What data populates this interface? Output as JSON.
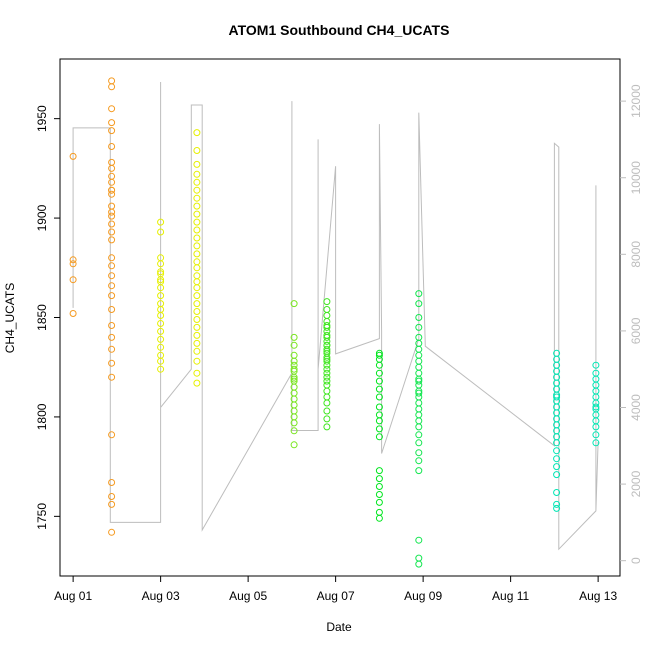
{
  "chart_data": {
    "type": "scatter",
    "title": "ATOM1 Southbound CH4_UCATS",
    "xlabel": "Date",
    "ylabel": "CH4_UCATS",
    "x_ticks": [
      "Aug 01",
      "Aug 03",
      "Aug 05",
      "Aug 07",
      "Aug 09",
      "Aug 11",
      "Aug 13"
    ],
    "x_tick_days": [
      1,
      3,
      5,
      7,
      9,
      11,
      13
    ],
    "xlim_days": [
      0.7,
      13.5
    ],
    "ylim": [
      1720,
      1980
    ],
    "y_ticks": [
      1750,
      1800,
      1850,
      1900,
      1950
    ],
    "y2_ticks": [
      0,
      2000,
      4000,
      6000,
      8000,
      10000,
      12000
    ],
    "y2lim": [
      -400,
      13100
    ],
    "grid": false,
    "colors": {
      "aug01": "#f59a20",
      "aug03": "#e6f000",
      "aug06": "#78e61e",
      "aug07": "#3ee61e",
      "aug08": "#00e61e",
      "aug09": "#14e650",
      "aug12": "#00e6b4",
      "line": "#bdbdbd"
    },
    "series": [
      {
        "color": "aug01",
        "x": [
          1.0,
          1.0,
          1.0,
          1.0,
          1.0,
          1.88,
          1.88,
          1.88,
          1.88,
          1.88,
          1.88,
          1.88,
          1.88,
          1.88,
          1.88,
          1.88,
          1.88,
          1.88,
          1.88,
          1.88,
          1.88,
          1.88,
          1.88,
          1.88,
          1.88,
          1.88,
          1.88,
          1.88,
          1.88,
          1.88,
          1.88,
          1.88,
          1.88,
          1.88,
          1.88,
          1.88,
          1.88,
          1.88,
          1.88,
          1.88
        ],
        "y": [
          1931,
          1879,
          1877,
          1869,
          1852,
          1969,
          1966,
          1955,
          1948,
          1944,
          1936,
          1928,
          1925,
          1921,
          1918,
          1914,
          1906,
          1901,
          1897,
          1893,
          1889,
          1880,
          1876,
          1871,
          1866,
          1861,
          1854,
          1846,
          1840,
          1834,
          1827,
          1820,
          1791,
          1767,
          1760,
          1756,
          1742,
          1912,
          1914,
          1903
        ]
      },
      {
        "color": "aug03",
        "x": [
          3.0,
          3.0,
          3.0,
          3.0,
          3.0,
          3.0,
          3.0,
          3.0,
          3.0,
          3.0,
          3.0,
          3.0,
          3.0,
          3.0,
          3.0,
          3.0,
          3.0,
          3.0,
          3.0,
          3.0,
          3.83,
          3.83,
          3.83,
          3.83,
          3.83,
          3.83,
          3.83,
          3.83,
          3.83,
          3.83,
          3.83,
          3.83,
          3.83,
          3.83,
          3.83,
          3.83,
          3.83,
          3.83,
          3.83,
          3.83,
          3.83,
          3.83,
          3.83,
          3.83,
          3.83,
          3.83,
          3.83,
          3.83,
          3.83,
          3.83
        ],
        "y": [
          1898,
          1893,
          1880,
          1877,
          1873,
          1869,
          1865,
          1861,
          1857,
          1854,
          1851,
          1847,
          1843,
          1839,
          1835,
          1831,
          1828,
          1824,
          1872,
          1868,
          1943,
          1934,
          1927,
          1922,
          1918,
          1914,
          1910,
          1906,
          1902,
          1898,
          1894,
          1890,
          1886,
          1882,
          1878,
          1875,
          1871,
          1868,
          1865,
          1861,
          1857,
          1853,
          1849,
          1845,
          1841,
          1837,
          1833,
          1828,
          1822,
          1817
        ]
      },
      {
        "color": "aug06",
        "x": [
          6.05,
          6.05,
          6.05,
          6.05,
          6.05,
          6.05,
          6.05,
          6.05,
          6.05,
          6.05,
          6.05,
          6.05,
          6.05,
          6.05,
          6.05,
          6.05,
          6.05,
          6.05,
          6.05,
          6.05
        ],
        "y": [
          1857,
          1840,
          1836,
          1831,
          1828,
          1826,
          1823,
          1820,
          1818,
          1815,
          1812,
          1809,
          1806,
          1803,
          1800,
          1797,
          1793,
          1786,
          1824,
          1819
        ]
      },
      {
        "color": "aug07",
        "x": [
          6.8,
          6.8,
          6.8,
          6.8,
          6.8,
          6.8,
          6.8,
          6.8,
          6.8,
          6.8,
          6.8,
          6.8,
          6.8,
          6.8,
          6.8,
          6.8,
          6.8,
          6.8,
          6.8,
          6.8,
          6.8,
          6.8,
          6.8,
          6.8,
          6.8,
          6.8,
          6.8,
          6.8,
          6.8,
          6.8
        ],
        "y": [
          1858,
          1854,
          1851,
          1848,
          1845,
          1843,
          1840,
          1838,
          1836,
          1834,
          1832,
          1830,
          1828,
          1826,
          1824,
          1822,
          1820,
          1818,
          1816,
          1813,
          1810,
          1807,
          1803,
          1799,
          1795,
          1841,
          1836,
          1829,
          1833,
          1846
        ]
      },
      {
        "color": "aug08",
        "x": [
          8.0,
          8.0,
          8.0,
          8.0,
          8.0,
          8.0,
          8.0,
          8.0,
          8.0,
          8.0,
          8.0,
          8.0,
          8.0,
          8.0,
          8.0,
          8.0,
          8.0,
          8.0,
          8.0,
          8.0
        ],
        "y": [
          1832,
          1829,
          1826,
          1822,
          1818,
          1814,
          1810,
          1805,
          1801,
          1798,
          1794,
          1790,
          1773,
          1769,
          1765,
          1761,
          1757,
          1752,
          1749,
          1831
        ]
      },
      {
        "color": "aug09",
        "x": [
          8.9,
          8.9,
          8.9,
          8.9,
          8.9,
          8.9,
          8.9,
          8.9,
          8.9,
          8.9,
          8.9,
          8.9,
          8.9,
          8.9,
          8.9,
          8.9,
          8.9,
          8.9,
          8.9,
          8.9,
          8.9,
          8.9,
          8.9,
          8.9,
          8.9,
          8.9,
          8.9,
          8.9,
          8.9,
          8.9
        ],
        "y": [
          1862,
          1857,
          1850,
          1845,
          1840,
          1837,
          1834,
          1831,
          1828,
          1825,
          1822,
          1819,
          1816,
          1813,
          1810,
          1807,
          1804,
          1801,
          1798,
          1795,
          1791,
          1787,
          1782,
          1778,
          1773,
          1738,
          1729,
          1726,
          1818,
          1812
        ]
      },
      {
        "color": "aug12",
        "x": [
          12.05,
          12.05,
          12.05,
          12.05,
          12.05,
          12.05,
          12.05,
          12.05,
          12.05,
          12.05,
          12.05,
          12.05,
          12.05,
          12.05,
          12.05,
          12.05,
          12.05,
          12.05,
          12.05,
          12.05,
          12.05,
          12.05,
          12.05,
          12.05,
          12.95,
          12.95,
          12.95,
          12.95,
          12.95,
          12.95,
          12.95,
          12.95,
          12.95,
          12.95,
          12.95,
          12.95,
          12.95,
          12.95
        ],
        "y": [
          1832,
          1829,
          1826,
          1823,
          1820,
          1817,
          1814,
          1811,
          1808,
          1805,
          1802,
          1799,
          1796,
          1793,
          1790,
          1787,
          1783,
          1779,
          1775,
          1771,
          1762,
          1756,
          1754,
          1810,
          1826,
          1822,
          1819,
          1816,
          1813,
          1810,
          1807,
          1804,
          1801,
          1798,
          1795,
          1791,
          1787,
          1805
        ]
      }
    ],
    "line_series": {
      "color": "line",
      "right_axis": true,
      "x": [
        1.0,
        1.0,
        1.0,
        1.85,
        1.85,
        3.0,
        3.0,
        3.0,
        3.0,
        3.7,
        3.7,
        3.95,
        3.95,
        6.0,
        6.0,
        6.0,
        6.6,
        6.6,
        6.6,
        7.0,
        7.0,
        8.0,
        8.0,
        8.05,
        8.05,
        8.9,
        8.9,
        9.05,
        12.0,
        12.0,
        12.1,
        12.1,
        12.95,
        12.95,
        12.95,
        13.0
      ],
      "y": [
        6600,
        11300,
        11300,
        11300,
        1000,
        1000,
        12500,
        5000,
        4000,
        5000,
        11900,
        11900,
        800,
        4900,
        12000,
        3400,
        3400,
        11000,
        5000,
        10300,
        5400,
        5800,
        11400,
        6000,
        2800,
        5800,
        11700,
        5600,
        3000,
        10900,
        10800,
        300,
        1300,
        9800,
        1300,
        3100
      ]
    }
  }
}
